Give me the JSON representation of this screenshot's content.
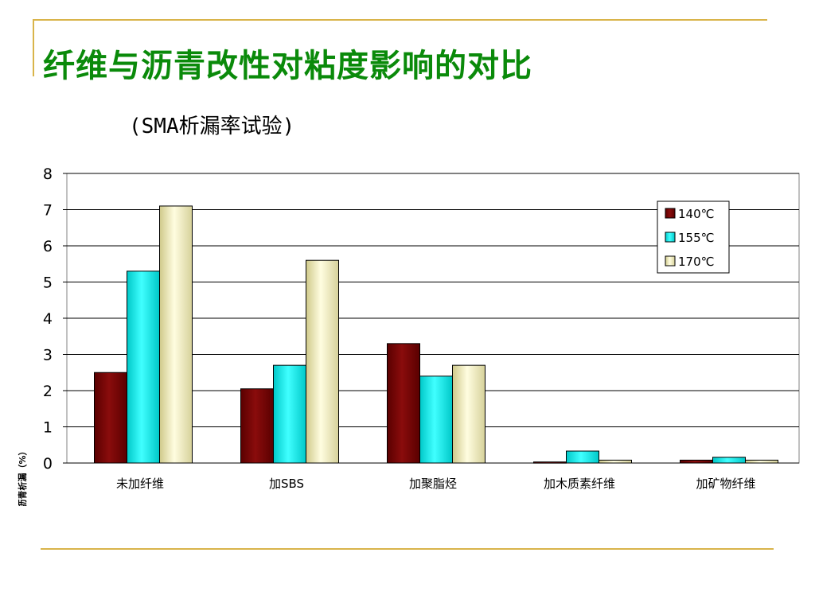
{
  "slide": {
    "title": "纤维与沥青改性对粘度影响的对比",
    "subtitle": "(SMA析漏率试验)"
  },
  "colors": {
    "accent_rule": "#d9b44a",
    "title": "#0a8a0a",
    "series": [
      "#800000",
      "#00ffff",
      "#f3f0c0"
    ]
  },
  "chart_data": {
    "type": "bar",
    "title": "",
    "xlabel": "",
    "ylabel": "沥青析漏（%）",
    "ylim": [
      0,
      8
    ],
    "yticks": [
      0,
      1,
      2,
      3,
      4,
      5,
      6,
      7,
      8
    ],
    "grid": true,
    "legend_position": "top-right",
    "categories": [
      "未加纤维",
      "加SBS",
      "加聚脂烃",
      "加木质素纤维",
      "加矿物纤维"
    ],
    "series": [
      {
        "name": "140℃",
        "values": [
          2.5,
          2.05,
          3.3,
          0.03,
          0.08
        ]
      },
      {
        "name": "155℃",
        "values": [
          5.3,
          2.7,
          2.4,
          0.33,
          0.16
        ]
      },
      {
        "name": "170℃",
        "values": [
          7.1,
          5.6,
          2.7,
          0.08,
          0.08
        ]
      }
    ]
  }
}
